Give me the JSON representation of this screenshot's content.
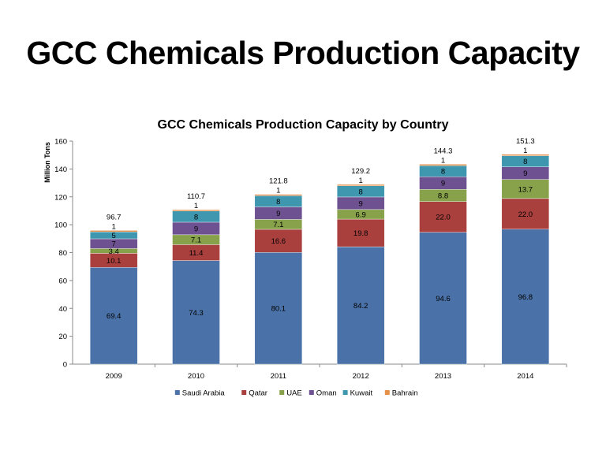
{
  "slide": {
    "title": "GCC Chemicals Production Capacity"
  },
  "chart_data": {
    "type": "bar",
    "stacked": true,
    "title": "GCC Chemicals Production Capacity by Country",
    "xlabel": "",
    "ylabel": "Million Tons",
    "ylim": [
      0,
      160
    ],
    "yticks": [
      0,
      20,
      40,
      60,
      80,
      100,
      120,
      140,
      160
    ],
    "grid": false,
    "legend": "bottom",
    "categories": [
      "2009",
      "2010",
      "2011",
      "2012",
      "2013",
      "2014"
    ],
    "series": [
      {
        "name": "Saudi Arabia",
        "color": "#4A72A8",
        "values": [
          69.4,
          74.3,
          80.1,
          84.2,
          94.6,
          96.8
        ],
        "labels": [
          "69.4",
          "74.3",
          "80.1",
          "84.2",
          "94.6",
          "96.8"
        ]
      },
      {
        "name": "Qatar",
        "color": "#A9403E",
        "values": [
          10.1,
          11.4,
          16.6,
          19.8,
          22.0,
          22.0
        ],
        "labels": [
          "10.1",
          "11.4",
          "16.6",
          "19.8",
          "22.0",
          "22.0"
        ]
      },
      {
        "name": "UAE",
        "color": "#87A24A",
        "values": [
          3.4,
          7.1,
          7.1,
          6.9,
          8.8,
          13.7
        ],
        "labels": [
          "3.4",
          "7.1",
          "7.1",
          "6.9",
          "8.8",
          "13.7"
        ]
      },
      {
        "name": "Oman",
        "color": "#6E5191",
        "values": [
          7,
          9,
          9,
          9,
          9,
          9
        ],
        "labels": [
          "7",
          "9",
          "9",
          "9",
          "9",
          "9"
        ]
      },
      {
        "name": "Kuwait",
        "color": "#3E97AF",
        "values": [
          5,
          8,
          8,
          8,
          8,
          8
        ],
        "labels": [
          "5",
          "8",
          "8",
          "8",
          "8",
          "8"
        ]
      },
      {
        "name": "Bahrain",
        "color": "#E5914A",
        "values": [
          1,
          1,
          1,
          1,
          1,
          1
        ],
        "labels": [
          "1",
          "1",
          "1",
          "1",
          "1",
          "1"
        ]
      }
    ],
    "totals": [
      "96.7",
      "110.7",
      "121.8",
      "129.2",
      "144.3",
      "151.3"
    ]
  }
}
